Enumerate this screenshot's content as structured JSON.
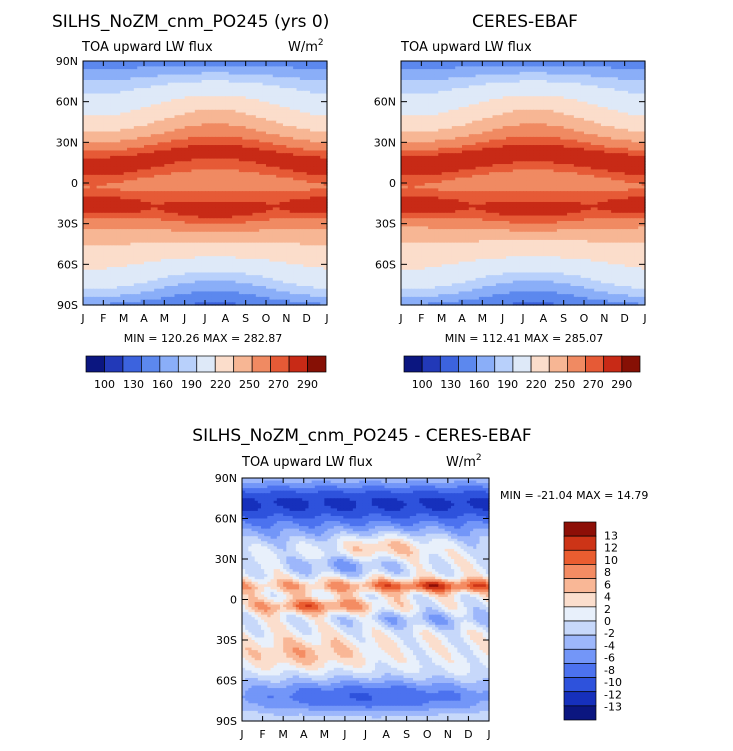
{
  "colors": {
    "scale12": [
      "#0b1680",
      "#2239b8",
      "#3c63de",
      "#5c88ee",
      "#8aaef8",
      "#b8d0fb",
      "#dee9f8",
      "#fbddcb",
      "#f7b694",
      "#f08a62",
      "#e65a36",
      "#c82a16",
      "#861005"
    ],
    "diff": [
      "#0b1680",
      "#1630bc",
      "#2e52dc",
      "#4c72ef",
      "#7396f8",
      "#9db7fb",
      "#c7d8fa",
      "#e8f0fb",
      "#fbdecd",
      "#f9b796",
      "#f48c63",
      "#ea5d30",
      "#cd3417",
      "#8d0f07"
    ]
  },
  "charts": {
    "top_left": {
      "title": "SILHS_NoZM_cnm_PO245 (yrs 0)",
      "subtitle": "TOA upward LW flux",
      "units": "W/m",
      "units_sup": "2",
      "stats": "MIN = 120.26  MAX = 282.87"
    },
    "top_right": {
      "title": "CERES-EBAF",
      "subtitle": "TOA upward LW flux",
      "stats": "MIN = 112.41  MAX = 285.07"
    },
    "bottom": {
      "title": "SILHS_NoZM_cnm_PO245 - CERES-EBAF",
      "subtitle": "TOA upward LW flux",
      "units": "W/m",
      "units_sup": "2",
      "stats": "MIN = -21.04  MAX =  14.79"
    }
  },
  "chart_data": [
    {
      "type": "heatmap",
      "title": "SILHS_NoZM_cnm_PO245 (yrs 0)",
      "subtitle": "TOA upward LW flux",
      "x": [
        "J",
        "F",
        "M",
        "A",
        "M",
        "J",
        "J",
        "A",
        "S",
        "O",
        "N",
        "D",
        "J"
      ],
      "y_ticks": [
        "90N",
        "60N",
        "30N",
        "0",
        "30S",
        "60S",
        "90S"
      ],
      "ylim": [
        -90,
        90
      ],
      "min": 120.26,
      "max": 282.87,
      "colorbar_labels": [
        "100",
        "130",
        "160",
        "190",
        "220",
        "250",
        "270",
        "290"
      ]
    },
    {
      "type": "heatmap",
      "title": "CERES-EBAF",
      "subtitle": "TOA upward LW flux",
      "x": [
        "J",
        "F",
        "M",
        "A",
        "M",
        "J",
        "J",
        "A",
        "S",
        "O",
        "N",
        "D",
        "J"
      ],
      "y_ticks": [
        "60N",
        "30N",
        "0",
        "30S",
        "60S"
      ],
      "ylim": [
        -90,
        90
      ],
      "min": 112.41,
      "max": 285.07,
      "colorbar_labels": [
        "100",
        "130",
        "160",
        "190",
        "220",
        "250",
        "270",
        "290"
      ]
    },
    {
      "type": "heatmap",
      "title": "SILHS_NoZM_cnm_PO245 - CERES-EBAF",
      "subtitle": "TOA upward LW flux",
      "x": [
        "J",
        "F",
        "M",
        "A",
        "M",
        "J",
        "J",
        "A",
        "S",
        "O",
        "N",
        "D",
        "J"
      ],
      "y_ticks": [
        "90N",
        "60N",
        "30N",
        "0",
        "30S",
        "60S",
        "90S"
      ],
      "ylim": [
        -90,
        90
      ],
      "min": -21.04,
      "max": 14.79,
      "colorbar_labels": [
        "13",
        "12",
        "10",
        "8",
        "6",
        "4",
        "2",
        "0",
        "-2",
        "-4",
        "-6",
        "-8",
        "-10",
        "-12",
        "-13"
      ]
    }
  ]
}
